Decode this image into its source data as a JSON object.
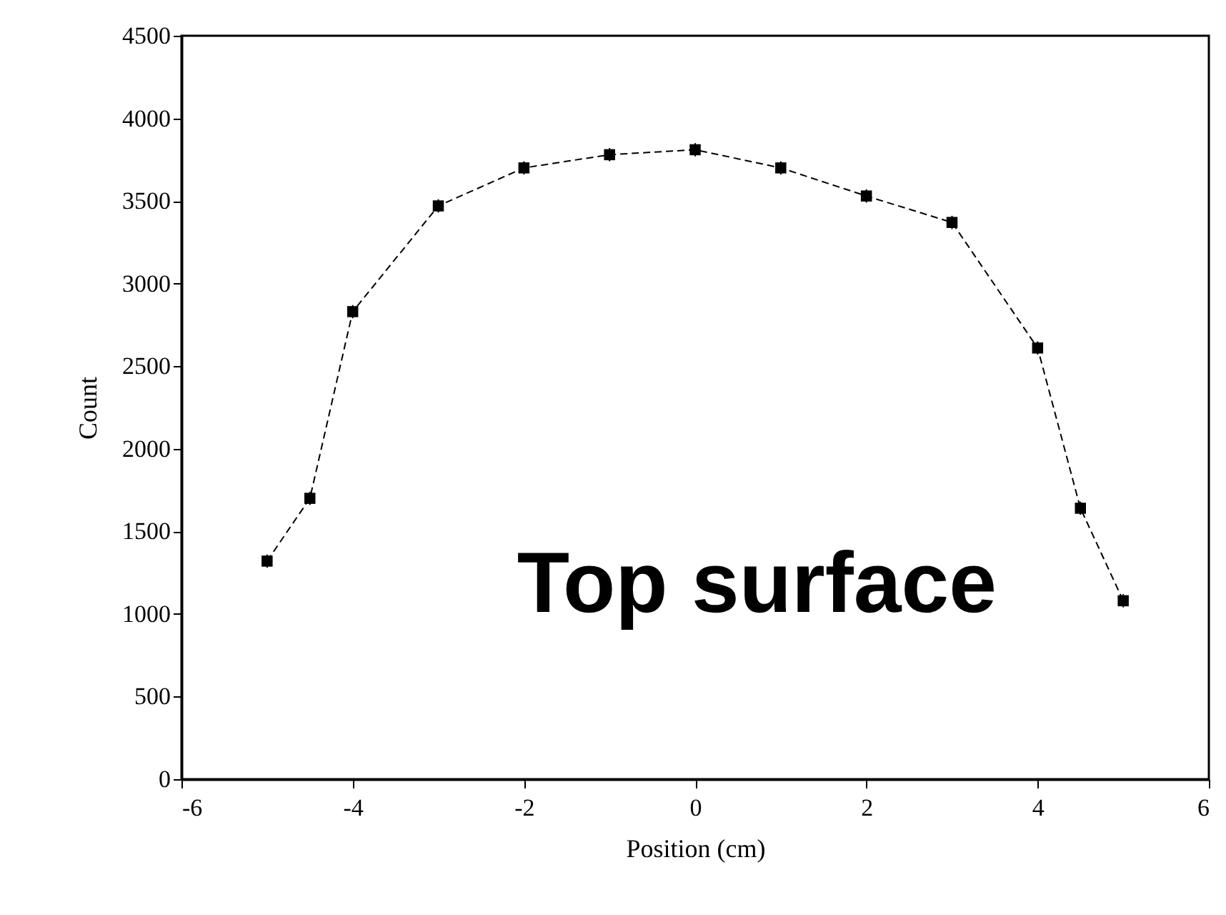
{
  "chart_data": {
    "type": "line",
    "xlabel": "Position (cm)",
    "ylabel": "Count",
    "x": [
      -5,
      -4.5,
      -4,
      -3,
      -2,
      -1,
      0,
      1,
      2,
      3,
      4,
      4.5,
      5
    ],
    "values": [
      1320,
      1700,
      2830,
      3470,
      3700,
      3780,
      3810,
      3700,
      3530,
      3370,
      2610,
      1640,
      1080
    ],
    "errors": [
      40,
      40,
      40,
      40,
      40,
      40,
      40,
      40,
      40,
      40,
      40,
      40,
      40
    ],
    "color": "#000000",
    "marker": "square",
    "line_style": "dashed",
    "grid": false,
    "xlim": [
      -6,
      6
    ],
    "xticks": [
      -6,
      -4,
      -2,
      0,
      2,
      4,
      6
    ],
    "ylim": [
      0,
      4500
    ],
    "yticks": [
      0,
      500,
      1000,
      1500,
      2000,
      2500,
      3000,
      3500,
      4000,
      4500
    ],
    "annotations": [
      "Top surface"
    ]
  }
}
